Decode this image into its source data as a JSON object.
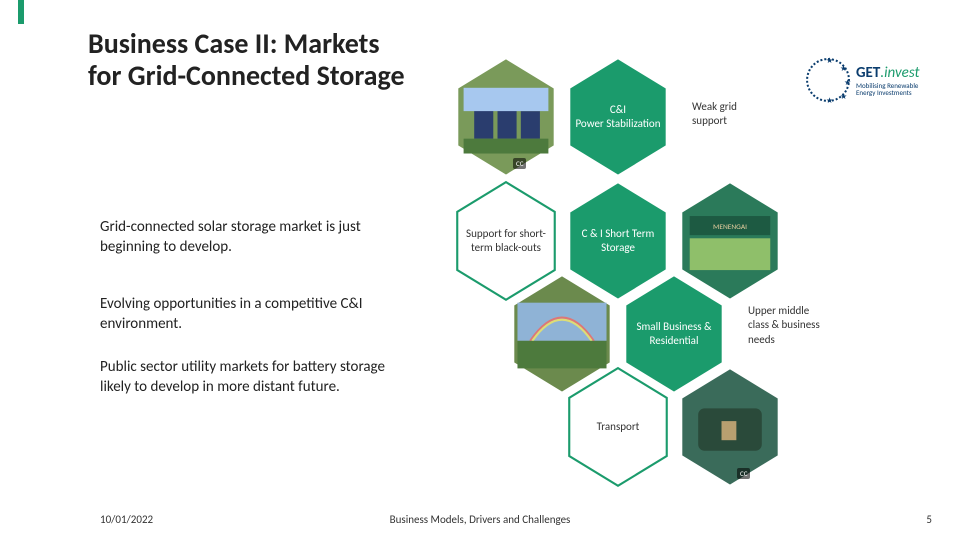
{
  "accent_color": "#1b9b6c",
  "title": "Business Case II: Markets for Grid-Connected Storage",
  "paragraphs": {
    "p1": "Grid-connected solar storage market is just beginning to develop.",
    "p2": "Evolving opportunities in a competitive C&I environment.",
    "p3": "Public sector utility markets for battery storage likely to develop in more distant future."
  },
  "hex": {
    "fill_green": "#1b9b6c",
    "fill_img1": "#7a9a5a",
    "fill_img2": "#6b8a4d",
    "fill_img3": "#2b7a5a",
    "fill_img4": "#3a6b5a",
    "stroke": "#ffffff",
    "items": {
      "power_stab": "C&I\nPower Stabilization",
      "short_term": "C & I Short Term Storage",
      "blackouts": "Support for short-term black-outs",
      "smb": "Small Business & Residential",
      "transport": "Transport"
    }
  },
  "notes": {
    "weak_grid": "Weak grid support",
    "upper_mid": "Upper middle class & business needs"
  },
  "logo": {
    "brand_a": "GET",
    "brand_b": ".invest",
    "tagline": "Mobilising Renewable Energy Investments"
  },
  "footer": {
    "date": "10/01/2022",
    "center": "Business Models, Drivers and Challenges",
    "page": "5"
  },
  "cc": "CC"
}
